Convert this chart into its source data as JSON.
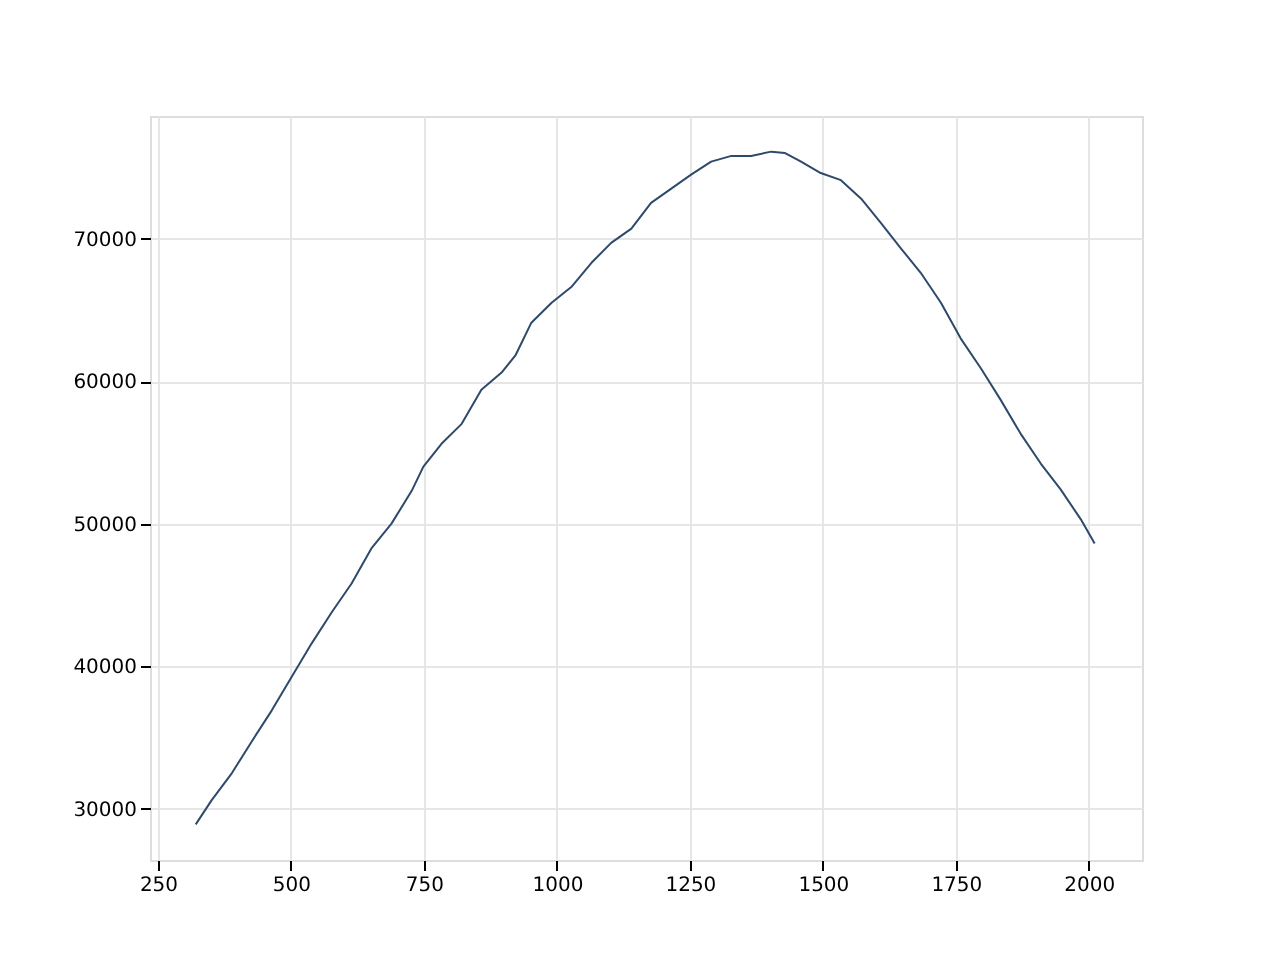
{
  "chart_data": {
    "type": "line",
    "xlim": [
      235,
      2100
    ],
    "ylim": [
      26400,
      78600
    ],
    "xticks": [
      250,
      500,
      750,
      1000,
      1250,
      1500,
      1750,
      2000
    ],
    "yticks": [
      30000,
      40000,
      50000,
      60000,
      70000
    ],
    "grid": true,
    "marker": "none",
    "line_style": "solid",
    "series": [
      {
        "color": "#2e4a6b",
        "x": [
          321,
          351,
          389,
          426,
          464,
          502,
          539,
          577,
          614,
          652,
          689,
          727,
          749,
          783,
          821,
          858,
          896,
          922,
          952,
          990,
          1027,
          1065,
          1102,
          1140,
          1177,
          1215,
          1253,
          1290,
          1328,
          1365,
          1403,
          1429,
          1459,
          1496,
          1534,
          1572,
          1609,
          1647,
          1684,
          1722,
          1759,
          1797,
          1834,
          1872,
          1910,
          1947,
          1985,
          2011
        ],
        "values": [
          28900,
          30600,
          32500,
          34700,
          36900,
          39300,
          41600,
          43800,
          45800,
          48300,
          50000,
          52300,
          54000,
          55600,
          57000,
          59400,
          60600,
          61800,
          64100,
          65500,
          66600,
          68300,
          69700,
          70700,
          72500,
          73500,
          74500,
          75400,
          75800,
          75800,
          76100,
          76000,
          75400,
          74600,
          74100,
          72800,
          71100,
          69300,
          67600,
          65500,
          63000,
          60900,
          58700,
          56300,
          54200,
          52400,
          50300,
          48600
        ]
      }
    ]
  }
}
